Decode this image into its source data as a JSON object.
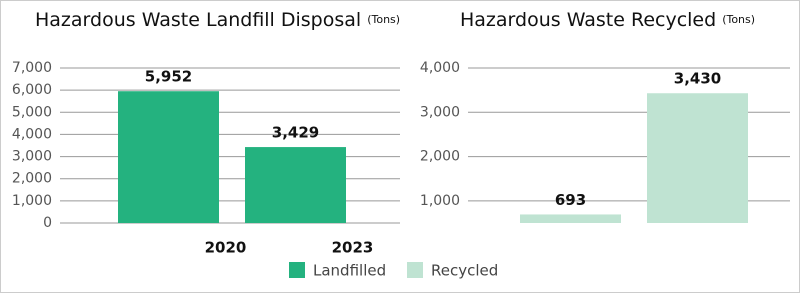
{
  "chart_data": [
    {
      "type": "bar",
      "title": "Hazardous Waste Landfill Disposal",
      "unit": "(Tons)",
      "categories": [
        "2020",
        "2023"
      ],
      "series": [
        {
          "name": "Landfilled",
          "color": "#24b27f",
          "values": [
            5952,
            3429
          ],
          "value_labels": [
            "5,952",
            "3,429"
          ]
        }
      ],
      "ylim": [
        0,
        7000
      ],
      "yticks": [
        0,
        {
          "value": 1000,
          "label": "1,000"
        },
        {
          "value": 2000,
          "label": "2,000"
        },
        {
          "value": 3000,
          "label": "3,000"
        },
        {
          "value": 4000,
          "label": "4,000"
        },
        {
          "value": 5000,
          "label": "5,000"
        },
        {
          "value": 6000,
          "label": "6,000"
        },
        {
          "value": 7000,
          "label": "7,000"
        }
      ],
      "grid": true
    },
    {
      "type": "bar",
      "title": "Hazardous Waste Recycled",
      "unit": "(Tons)",
      "categories": [
        null,
        null
      ],
      "series": [
        {
          "name": "Recycled",
          "color": "#bfe3d2",
          "values": [
            693,
            3430
          ],
          "value_labels": [
            "693",
            "3,430"
          ]
        }
      ],
      "ylim": [
        500,
        4000
      ],
      "yticks": [
        {
          "value": 1000,
          "label": "1,000"
        },
        {
          "value": 2000,
          "label": "2,000"
        },
        {
          "value": 3000,
          "label": "3,000"
        },
        {
          "value": 4000,
          "label": "4,000"
        }
      ],
      "grid": true
    }
  ]
}
